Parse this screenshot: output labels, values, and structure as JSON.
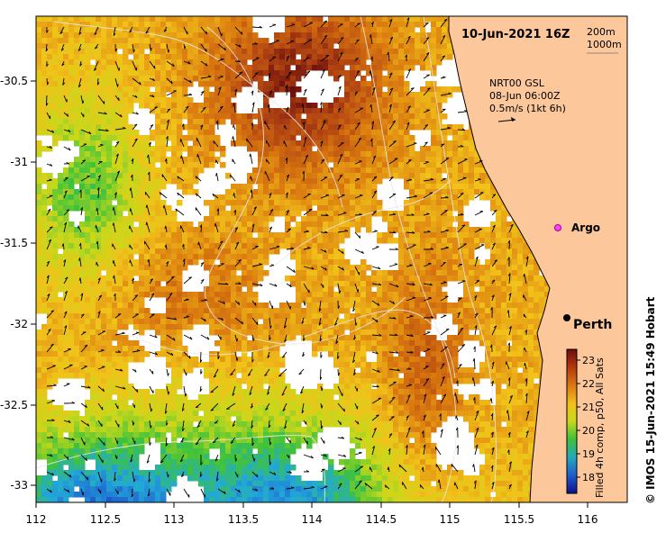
{
  "map": {
    "date_title": "10-Jun-2021 16Z",
    "contour_legend": [
      "200m",
      "1000m"
    ],
    "current_source": "NRT00 GSL",
    "current_time": "08-Jun 06:00Z",
    "current_scale": "0.5m/s (1kt 6h)",
    "argo_label": "Argo",
    "city_label": "Perth",
    "lat_ticks": [
      "-30.5",
      "-31",
      "-31.5",
      "-32",
      "-32.5",
      "-33"
    ],
    "lon_ticks": [
      "112",
      "112.5",
      "113",
      "113.5",
      "114",
      "114.5",
      "115",
      "115.5",
      "116"
    ],
    "credit": "© IMOS 15-Jun-2021 15:49 Hobart"
  },
  "colorbar": {
    "ticks": [
      "23",
      "22",
      "21",
      "20",
      "19",
      "18"
    ],
    "label": "Filled 4h comp, p50, All Sats"
  },
  "colors": {
    "land": "#fcc79a",
    "sst_warm": "#b8520c",
    "sst_cool": "#2fa8d8"
  }
}
